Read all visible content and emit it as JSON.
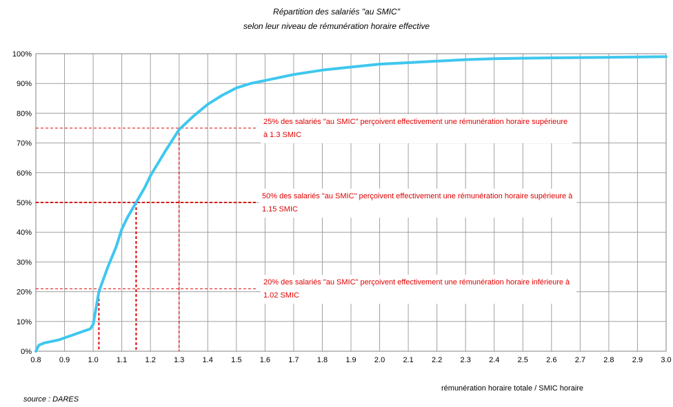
{
  "title": "Répartition des salariés \"au SMIC\"",
  "subtitle": "selon leur niveau de rémunération horaire effective",
  "xlabel": "rémunération horaire totale / SMIC horaire",
  "source": "source : DARES",
  "colors": {
    "curve": "#3fc7ef",
    "reference": "#e00000",
    "grid": "#a0a0a0",
    "plot_background": "#ffffff"
  },
  "chart_data": {
    "type": "line",
    "title": "Répartition des salariés \"au SMIC\"",
    "subtitle": "selon leur niveau de rémunération horaire effective",
    "xlabel": "rémunération horaire totale / SMIC horaire",
    "ylabel": "",
    "xlim": [
      0.8,
      3.0
    ],
    "ylim": [
      0,
      100
    ],
    "x_ticks": [
      "0.8",
      "0.9",
      "1.0",
      "1.1",
      "1.2",
      "1.3",
      "1.4",
      "1.5",
      "1.6",
      "1.7",
      "1.8",
      "1.9",
      "2.0",
      "2.1",
      "2.2",
      "2.3",
      "2.4",
      "2.5",
      "2.6",
      "2.7",
      "2.8",
      "2.9",
      "3.0"
    ],
    "y_ticks": [
      "0%",
      "10%",
      "20%",
      "30%",
      "40%",
      "50%",
      "60%",
      "70%",
      "80%",
      "90%",
      "100%"
    ],
    "grid": true,
    "series": [
      {
        "x": [
          0.8,
          0.81,
          0.83,
          0.85,
          0.88,
          0.9,
          0.93,
          0.96,
          0.99,
          1.0,
          1.02,
          1.05,
          1.08,
          1.1,
          1.12,
          1.15,
          1.18,
          1.2,
          1.25,
          1.3,
          1.35,
          1.4,
          1.45,
          1.5,
          1.55,
          1.6,
          1.7,
          1.8,
          1.9,
          2.0,
          2.1,
          2.2,
          2.3,
          2.4,
          2.5,
          2.6,
          2.7,
          2.8,
          2.9,
          3.0
        ],
        "values": [
          0,
          2,
          2.8,
          3.2,
          3.8,
          4.5,
          5.5,
          6.5,
          7.5,
          9,
          20,
          28,
          35,
          41,
          45,
          50,
          55,
          59,
          67,
          74.5,
          79,
          83,
          86,
          88.5,
          90,
          91,
          93,
          94.5,
          95.5,
          96.5,
          97,
          97.5,
          98,
          98.3,
          98.5,
          98.6,
          98.7,
          98.8,
          98.9,
          99
        ]
      }
    ],
    "reference_points": [
      {
        "x": 1.3,
        "y": 75
      },
      {
        "x": 1.15,
        "y": 50
      },
      {
        "x": 1.02,
        "y": 21
      }
    ],
    "annotations": [
      "25% des salariés \"au SMIC\" perçoivent effectivement une rémunération horaire supérieure à 1.3 SMIC",
      "50% des salariés \"au SMIC\" perçoivent effectivement une rémunération horaire supérieure à 1.15 SMIC",
      "20% des salariés \"au SMIC\" perçoivent effectivement une rémunération horaire inférieure à 1.02 SMIC"
    ]
  }
}
